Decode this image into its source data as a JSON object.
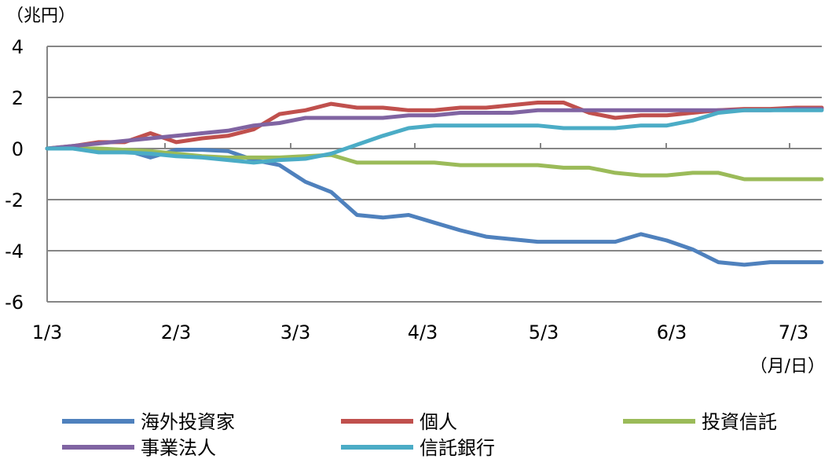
{
  "chart_data": {
    "type": "line",
    "y_unit_label": "（兆円）",
    "x_unit_label": "（月/日）",
    "ylim": [
      -6,
      4
    ],
    "yticks": [
      4,
      2,
      0,
      -2,
      -4,
      -6
    ],
    "ytick_labels": [
      "4",
      "2",
      "0",
      "-2",
      "-4",
      "-6"
    ],
    "xtick_labels": [
      "1/3",
      "2/3",
      "3/3",
      "4/3",
      "5/3",
      "6/3",
      "7/3"
    ],
    "grid": true,
    "legend_position": "bottom",
    "x_count": 31,
    "series": [
      {
        "name": "海外投資家",
        "color": "#4f81bd",
        "values": [
          0,
          0,
          -0.05,
          -0.05,
          -0.35,
          -0.05,
          -0.05,
          -0.1,
          -0.45,
          -0.65,
          -1.3,
          -1.7,
          -2.6,
          -2.7,
          -2.6,
          -2.9,
          -3.2,
          -3.45,
          -3.55,
          -3.65,
          -3.65,
          -3.65,
          -3.65,
          -3.35,
          -3.6,
          -3.95,
          -4.45,
          -4.55,
          -4.45,
          -4.45,
          -4.45
        ]
      },
      {
        "name": "個人",
        "color": "#c0504d",
        "values": [
          0,
          0.1,
          0.25,
          0.25,
          0.6,
          0.25,
          0.4,
          0.5,
          0.75,
          1.35,
          1.5,
          1.75,
          1.6,
          1.6,
          1.5,
          1.5,
          1.6,
          1.6,
          1.7,
          1.8,
          1.8,
          1.4,
          1.2,
          1.3,
          1.3,
          1.4,
          1.5,
          1.55,
          1.55,
          1.6,
          1.6
        ]
      },
      {
        "name": "投資信託",
        "color": "#9bbb59",
        "values": [
          0,
          0,
          0,
          -0.05,
          -0.1,
          -0.2,
          -0.3,
          -0.35,
          -0.35,
          -0.35,
          -0.3,
          -0.25,
          -0.55,
          -0.55,
          -0.55,
          -0.55,
          -0.65,
          -0.65,
          -0.65,
          -0.65,
          -0.75,
          -0.75,
          -0.95,
          -1.05,
          -1.05,
          -0.95,
          -0.95,
          -1.2,
          -1.2,
          -1.2,
          -1.2
        ]
      },
      {
        "name": "事業法人",
        "color": "#8064a2",
        "values": [
          0,
          0.1,
          0.2,
          0.3,
          0.4,
          0.5,
          0.6,
          0.7,
          0.9,
          1.0,
          1.2,
          1.2,
          1.2,
          1.2,
          1.3,
          1.3,
          1.4,
          1.4,
          1.4,
          1.5,
          1.5,
          1.5,
          1.5,
          1.5,
          1.5,
          1.5,
          1.5,
          1.5,
          1.5,
          1.55,
          1.55
        ]
      },
      {
        "name": "信託銀行",
        "color": "#4bacc6",
        "values": [
          0,
          0,
          -0.15,
          -0.15,
          -0.2,
          -0.3,
          -0.35,
          -0.45,
          -0.55,
          -0.45,
          -0.4,
          -0.2,
          0.15,
          0.5,
          0.8,
          0.9,
          0.9,
          0.9,
          0.9,
          0.9,
          0.8,
          0.8,
          0.8,
          0.9,
          0.9,
          1.1,
          1.4,
          1.5,
          1.5,
          1.5,
          1.5
        ]
      }
    ]
  }
}
